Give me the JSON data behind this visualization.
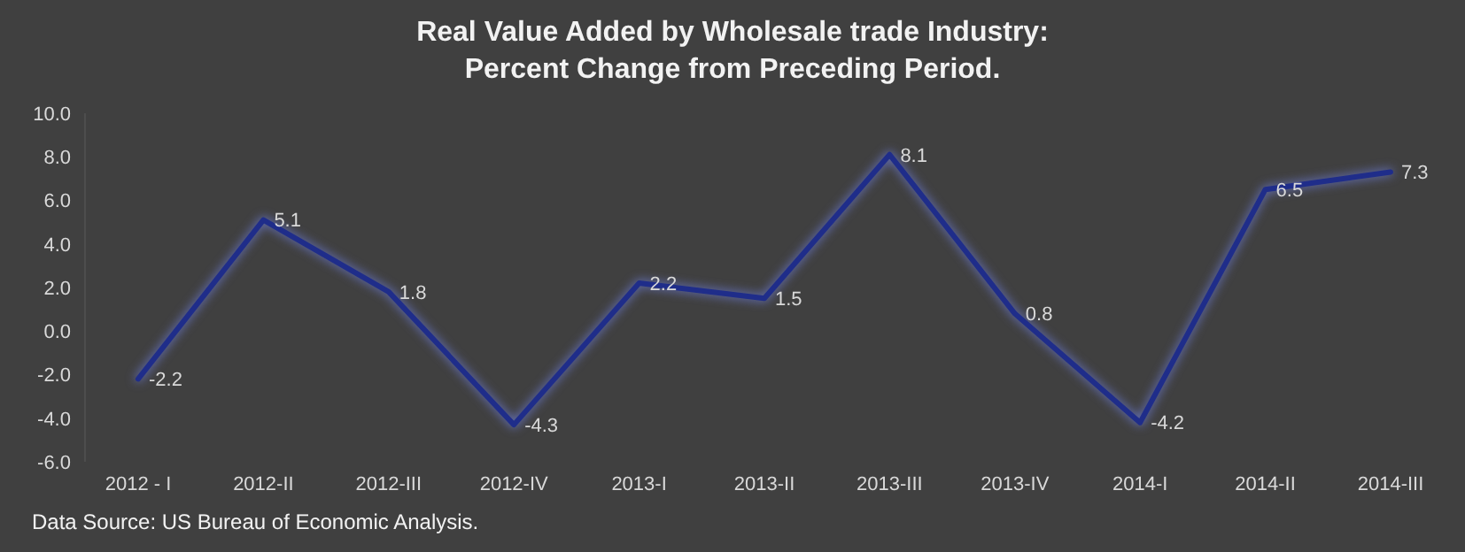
{
  "chart_data": {
    "type": "line",
    "title": "Real Value Added by Wholesale trade Industry:\nPercent Change from Preceding Period.",
    "categories": [
      "2012 - I",
      "2012-II",
      "2012-III",
      "2012-IV",
      "2013-I",
      "2013-II",
      "2013-III",
      "2013-IV",
      "2014-I",
      "2014-II",
      "2014-III"
    ],
    "series": [
      {
        "color": "#1f2d8a",
        "values": [
          -2.2,
          5.1,
          1.8,
          -4.3,
          2.2,
          1.5,
          8.1,
          0.8,
          -4.2,
          6.5,
          7.3
        ]
      }
    ],
    "ylim": [
      -6,
      10
    ],
    "yticks": [
      {
        "value": -6,
        "label": "-6.0"
      },
      {
        "value": -4,
        "label": "-4.0"
      },
      {
        "value": -2,
        "label": "-2.0"
      },
      {
        "value": 0,
        "label": "0.0"
      },
      {
        "value": 2,
        "label": "2.0"
      },
      {
        "value": 4,
        "label": "4.0"
      },
      {
        "value": 6,
        "label": "6.0"
      },
      {
        "value": 8,
        "label": "8.0"
      },
      {
        "value": 10,
        "label": "10.0"
      }
    ],
    "grid": false,
    "legend": false,
    "marker": "none",
    "line_style": "solid",
    "data_labels": true,
    "annotations": [
      "Data Source: US Bureau of Economic Analysis."
    ]
  }
}
